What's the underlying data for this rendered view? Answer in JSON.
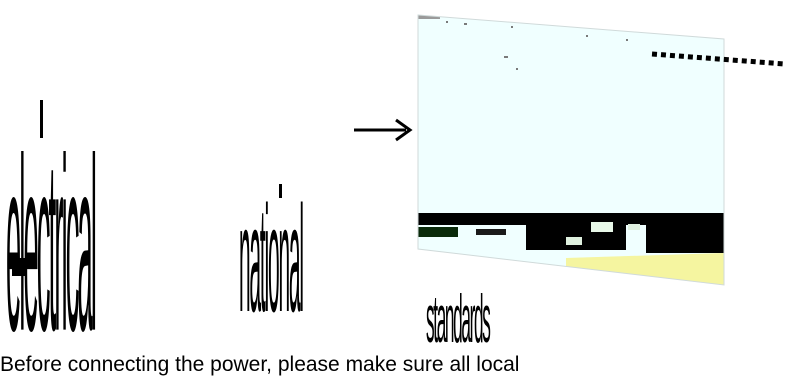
{
  "labels": {
    "word1": "electrical",
    "word2": "national",
    "word3": "standards"
  },
  "caption": "Before connecting the power, please make sure all local",
  "colors": {
    "panel": "#f0ffff",
    "panel_band": "#000000",
    "panel_bottom": "#f5f5a0",
    "text": "#000000"
  },
  "icons": {
    "arrow": "right-arrow-icon",
    "leader": "dotted-leader-line"
  }
}
